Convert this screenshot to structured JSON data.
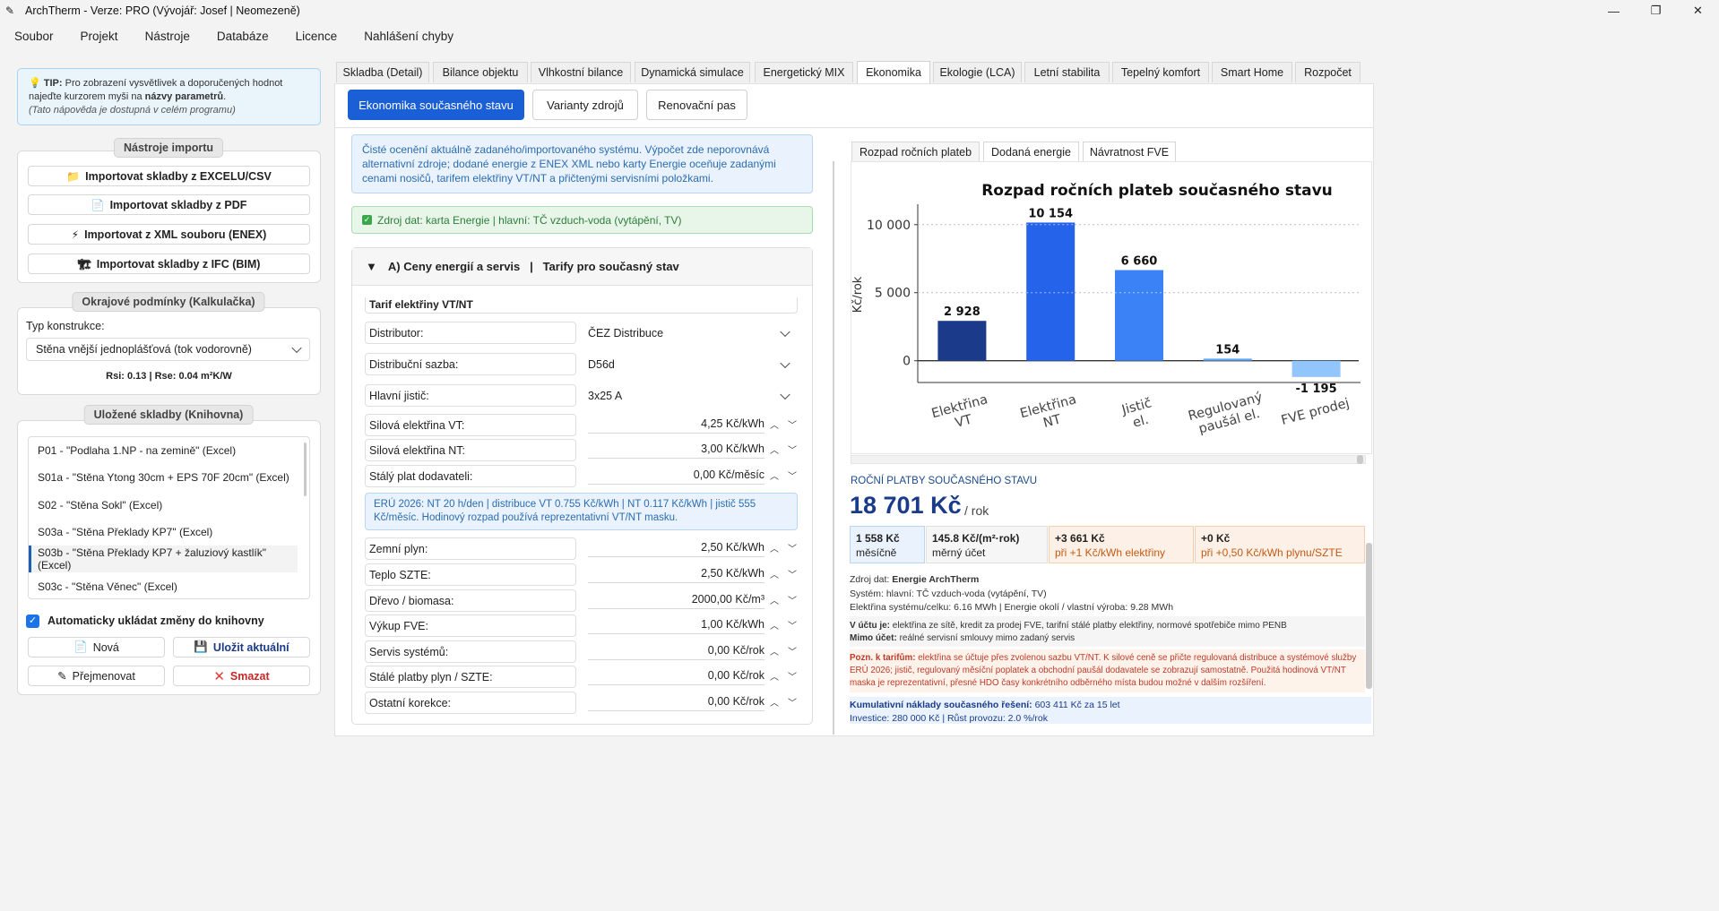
{
  "app": {
    "title": "ArchTherm - Verze: PRO (Vývojář: Josef | Neomezeně)",
    "window_controls": {
      "minimize": "—",
      "maximize": "❐",
      "close": "✕"
    }
  },
  "menu": [
    "Soubor",
    "Projekt",
    "Nástroje",
    "Databáze",
    "Licence",
    "Nahlášení chyby"
  ],
  "tip": {
    "label": "TIP:",
    "text1": "Pro zobrazení vysvětlivek a doporučených hodnot najeďte kurzorem myši na",
    "bold": "názvy parametrů",
    "dot": ".",
    "italic": "(Tato nápověda je dostupná v celém programu)"
  },
  "import_tools": {
    "title": "Nástroje importu",
    "buttons": [
      {
        "icon": "📁",
        "label": "Importovat skladby z EXCELU/CSV"
      },
      {
        "icon": "📄",
        "label": "Importovat skladby z PDF"
      },
      {
        "icon": "⚡",
        "label": "Importovat z XML souboru (ENEX)"
      },
      {
        "icon": "🏗",
        "label": "Importovat skladby z IFC (BIM)"
      }
    ]
  },
  "boundary": {
    "title": "Okrajové podmínky (Kalkulačka)",
    "type_label": "Typ konstrukce:",
    "type_value": "Stěna vnější jednoplášťová (tok vodorovně)",
    "rs": "Rsi: 0.13 | Rse: 0.04 m²K/W"
  },
  "library": {
    "title": "Uložené skladby (Knihovna)",
    "items": [
      "P01 - \"Podlaha 1.NP - na zemině\" (Excel)",
      "S01a - \"Stěna Ytong 30cm + EPS 70F 20cm\" (Excel)",
      "S02 - \"Stěna Sokl\" (Excel)",
      "S03a - \"Stěna Překlady KP7\" (Excel)",
      "S03b - \"Stěna Překlady KP7 + žaluziový kastlík\" (Excel)",
      "S03c - \"Stěna Věnec\" (Excel)"
    ],
    "selected_index": 4,
    "autosave_label": "Automaticky ukládat změny do knihovny",
    "autosave_checked": true,
    "btn_new": "Nová",
    "btn_save": "Uložit aktuální",
    "btn_rename": "Přejmenovat",
    "btn_delete": "Smazat"
  },
  "tabs": [
    "Skladba (Detail)",
    "Bilance objektu",
    "Vlhkostní bilance",
    "Dynamická simulace",
    "Energetický MIX",
    "Ekonomika",
    "Ekologie (LCA)",
    "Letní stabilita",
    "Tepelný komfort",
    "Smart Home",
    "Rozpočet"
  ],
  "active_tab": "Ekonomika",
  "subtabs": [
    "Ekonomika současného stavu",
    "Varianty zdrojů",
    "Renovační pas"
  ],
  "info_text": "Čisté ocenění aktuálně zadaného/importovaného systému. Výpočet zde neporovnává alternativní zdroje; dodané energie z ENEX XML nebo karty Energie oceňuje zadanými cenami nosičů, tarifem elektřiny VT/NT a přičtenými servisními položkami.",
  "source_text": "Zdroj dat: karta Energie | hlavní: TČ vzduch-voda (vytápění, TV)",
  "sectionA": {
    "title": "A) Ceny energií a servis   |   Tarify pro současný stav",
    "tariff_header": "Tarif elektřiny VT/NT",
    "selects": [
      {
        "label": "Distributor:",
        "value": "ČEZ Distribuce"
      },
      {
        "label": "Distribuční sazba:",
        "value": "D56d"
      },
      {
        "label": "Hlavní jistič:",
        "value": "3x25 A"
      }
    ],
    "fields1": [
      {
        "label": "Silová elektřina VT:",
        "value": "4,25 Kč/kWh"
      },
      {
        "label": "Silová elektřina NT:",
        "value": "3,00 Kč/kWh"
      },
      {
        "label": "Stálý plat dodavateli:",
        "value": "0,00 Kč/měsíc"
      }
    ],
    "note": "ERÚ 2026: NT 20 h/den | distribuce VT 0.755 Kč/kWh | NT 0.117 Kč/kWh | jistič 555 Kč/měsíc. Hodinový rozpad používá reprezentativní VT/NT masku.",
    "fields2": [
      {
        "label": "Zemní plyn:",
        "value": "2,50 Kč/kWh"
      },
      {
        "label": "Teplo SZTE:",
        "value": "2,50 Kč/kWh"
      },
      {
        "label": "Dřevo / biomasa:",
        "value": "2000,00 Kč/m³"
      },
      {
        "label": "Výkup FVE:",
        "value": "1,00 Kč/kWh"
      },
      {
        "label": "Servis systémů:",
        "value": "0,00 Kč/rok"
      },
      {
        "label": "Stálé platby plyn / SZTE:",
        "value": "0,00 Kč/rok"
      },
      {
        "label": "Ostatní korekce:",
        "value": "0,00 Kč/rok"
      }
    ]
  },
  "chart_tabs": [
    "Rozpad ročních plateb",
    "Dodaná energie",
    "Návratnost FVE"
  ],
  "chart_data": {
    "type": "bar",
    "title": "Rozpad ročních plateb současného stavu",
    "ylabel": "Kč/rok",
    "categories": [
      [
        "Elektřina",
        "VT"
      ],
      [
        "Elektřina",
        "NT"
      ],
      [
        "Jistič",
        "el."
      ],
      [
        "Regulovaný",
        "paušál el."
      ],
      [
        "FVE prodej"
      ]
    ],
    "values": [
      2928,
      10154,
      6660,
      154,
      -1195
    ],
    "value_labels": [
      "2 928",
      "10 154",
      "6 660",
      "154",
      "-1 195"
    ],
    "colors": [
      "#1c3a8a",
      "#2563eb",
      "#3b82f6",
      "#60a5fa",
      "#93c5fd"
    ],
    "yticks": [
      0,
      5000,
      10000
    ],
    "ytick_labels": [
      "0",
      "5 000",
      "10 000"
    ],
    "ylim": [
      -1600,
      11500
    ],
    "grid": true
  },
  "results": {
    "heading": "ROČNÍ PLATBY SOUČASNÉHO STAVU",
    "total": "18 701 Kč",
    "unit": "/ rok",
    "kpis": [
      {
        "value": "1 558 Kč",
        "label": "měsíčně"
      },
      {
        "value": "145.8 Kč/(m²·rok)",
        "label": "měrný účet"
      },
      {
        "value": "+3 661 Kč",
        "label": "při +1 Kč/kWh elektřiny"
      },
      {
        "value": "+0 Kč",
        "label": "při +0,50 Kč/kWh plynu/SZTE"
      }
    ],
    "src_label": "Zdroj dat:",
    "src_value": "Energie ArchTherm",
    "system": "Systém: hlavní: TČ vzduch-voda (vytápění, TV)",
    "electricity": "Elektřina systému/celku: 6.16 MWh | Energie okolí / vlastní výroba: 9.28 MWh",
    "in_account_label": "V účtu je:",
    "in_account": "elektřina ze sítě, kredit za prodej FVE, tarifní stálé platby elektřiny, normové spotřebiče mimo PENB",
    "out_account_label": "Mimo účet:",
    "out_account": "reálné servisní smlouvy mimo zadaný servis",
    "tariff_note_label": "Pozn. k tarifům:",
    "tariff_note": "elektřina se účtuje přes zvolenou sazbu VT/NT. K silové ceně se přičte regulovaná distribuce a systémové služby ERÚ 2026; jistič, regulovaný měsíční poplatek a obchodní paušál dodavatele se zobrazují samostatně. Použitá hodinová VT/NT maska je reprezentativní, přesné HDO časy konkrétního odběrného místa budou možné v dalším rozšíření.",
    "cumulative_label": "Kumulativní náklady současného řešení:",
    "cumulative": "603 411 Kč za 15 let",
    "investment": "Investice: 280 000 Kč | Růst provozu: 2.0 %/rok"
  }
}
